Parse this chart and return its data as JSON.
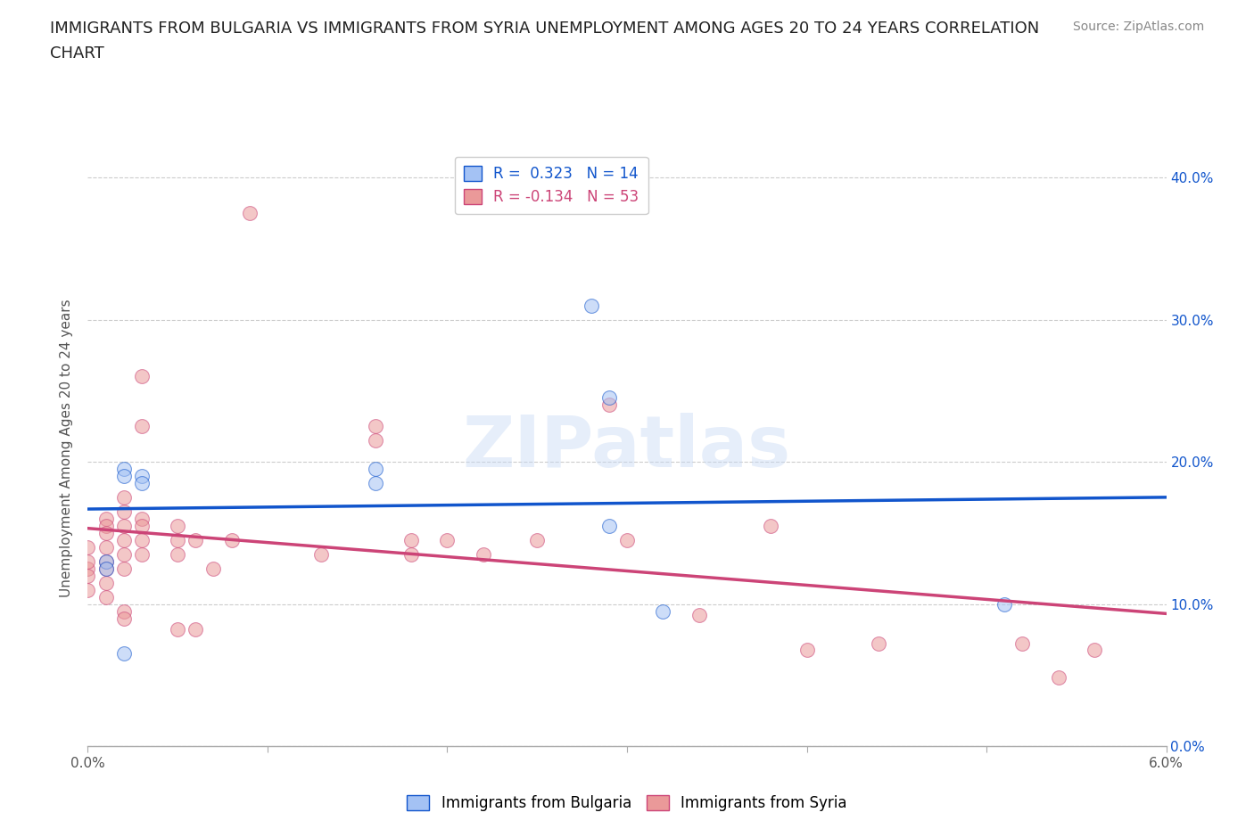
{
  "title_line1": "IMMIGRANTS FROM BULGARIA VS IMMIGRANTS FROM SYRIA UNEMPLOYMENT AMONG AGES 20 TO 24 YEARS CORRELATION",
  "title_line2": "CHART",
  "source_text": "Source: ZipAtlas.com",
  "ylabel": "Unemployment Among Ages 20 to 24 years",
  "watermark": "ZIPatlas",
  "xlim": [
    0.0,
    0.06
  ],
  "ylim": [
    0.0,
    0.42
  ],
  "xticks": [
    0.0,
    0.01,
    0.02,
    0.03,
    0.04,
    0.05,
    0.06
  ],
  "ytick_positions": [
    0.0,
    0.1,
    0.2,
    0.3,
    0.4
  ],
  "ytick_labels": [
    "0.0%",
    "10.0%",
    "20.0%",
    "30.0%",
    "40.0%"
  ],
  "blue_R": 0.323,
  "blue_N": 14,
  "pink_R": -0.134,
  "pink_N": 53,
  "blue_color": "#a4c2f4",
  "pink_color": "#ea9999",
  "blue_line_color": "#1155cc",
  "pink_line_color": "#cc4477",
  "blue_scatter": [
    [
      0.001,
      0.13
    ],
    [
      0.001,
      0.125
    ],
    [
      0.002,
      0.195
    ],
    [
      0.002,
      0.19
    ],
    [
      0.003,
      0.19
    ],
    [
      0.003,
      0.185
    ],
    [
      0.016,
      0.195
    ],
    [
      0.016,
      0.185
    ],
    [
      0.028,
      0.31
    ],
    [
      0.029,
      0.245
    ],
    [
      0.029,
      0.155
    ],
    [
      0.032,
      0.095
    ],
    [
      0.051,
      0.1
    ],
    [
      0.002,
      0.065
    ]
  ],
  "pink_scatter": [
    [
      0.0,
      0.125
    ],
    [
      0.0,
      0.13
    ],
    [
      0.0,
      0.14
    ],
    [
      0.0,
      0.12
    ],
    [
      0.0,
      0.11
    ],
    [
      0.001,
      0.13
    ],
    [
      0.001,
      0.14
    ],
    [
      0.001,
      0.16
    ],
    [
      0.001,
      0.125
    ],
    [
      0.001,
      0.155
    ],
    [
      0.001,
      0.15
    ],
    [
      0.001,
      0.115
    ],
    [
      0.001,
      0.105
    ],
    [
      0.002,
      0.155
    ],
    [
      0.002,
      0.145
    ],
    [
      0.002,
      0.135
    ],
    [
      0.002,
      0.165
    ],
    [
      0.002,
      0.175
    ],
    [
      0.002,
      0.125
    ],
    [
      0.002,
      0.095
    ],
    [
      0.002,
      0.09
    ],
    [
      0.003,
      0.16
    ],
    [
      0.003,
      0.155
    ],
    [
      0.003,
      0.145
    ],
    [
      0.003,
      0.135
    ],
    [
      0.003,
      0.225
    ],
    [
      0.003,
      0.26
    ],
    [
      0.005,
      0.155
    ],
    [
      0.005,
      0.145
    ],
    [
      0.005,
      0.135
    ],
    [
      0.005,
      0.082
    ],
    [
      0.006,
      0.145
    ],
    [
      0.006,
      0.082
    ],
    [
      0.007,
      0.125
    ],
    [
      0.008,
      0.145
    ],
    [
      0.009,
      0.375
    ],
    [
      0.013,
      0.135
    ],
    [
      0.016,
      0.225
    ],
    [
      0.016,
      0.215
    ],
    [
      0.018,
      0.145
    ],
    [
      0.018,
      0.135
    ],
    [
      0.02,
      0.145
    ],
    [
      0.022,
      0.135
    ],
    [
      0.025,
      0.145
    ],
    [
      0.029,
      0.24
    ],
    [
      0.03,
      0.145
    ],
    [
      0.034,
      0.092
    ],
    [
      0.038,
      0.155
    ],
    [
      0.04,
      0.068
    ],
    [
      0.044,
      0.072
    ],
    [
      0.052,
      0.072
    ],
    [
      0.056,
      0.068
    ],
    [
      0.054,
      0.048
    ]
  ],
  "background_color": "#ffffff",
  "plot_bg_color": "#ffffff",
  "grid_color": "#cccccc",
  "title_fontsize": 13,
  "axis_label_fontsize": 11,
  "tick_fontsize": 11,
  "legend_fontsize": 12,
  "source_fontsize": 10,
  "marker_size": 130,
  "marker_alpha": 0.55,
  "line_width": 2.5
}
